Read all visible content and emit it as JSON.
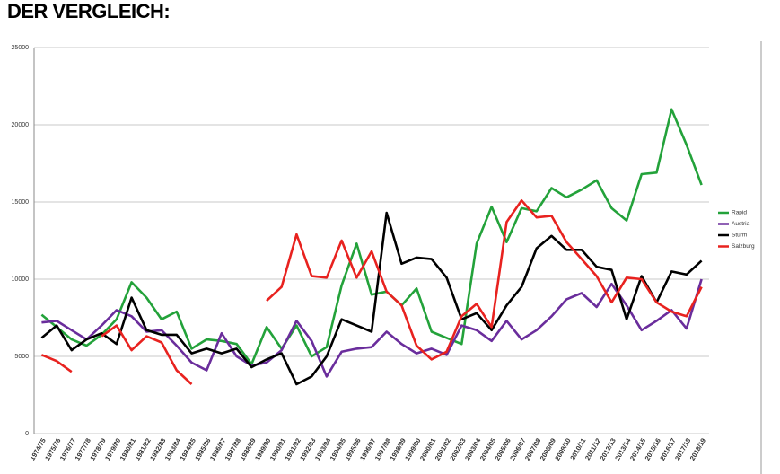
{
  "header": {
    "title": "DER VERGLEICH:"
  },
  "chart_data": {
    "type": "line",
    "categories": [
      "1974/75",
      "1975/76",
      "1976/77",
      "1977/78",
      "1978/79",
      "1979/80",
      "1980/81",
      "1981/82",
      "1982/83",
      "1983/84",
      "1984/85",
      "1985/86",
      "1986/87",
      "1987/88",
      "1988/89",
      "1989/90",
      "1990/91",
      "1991/92",
      "1992/93",
      "1993/94",
      "1994/95",
      "1995/96",
      "1996/97",
      "1997/98",
      "1998/99",
      "1999/00",
      "2000/01",
      "2001/02",
      "2002/03",
      "2003/04",
      "2004/05",
      "2005/06",
      "2006/07",
      "2007/08",
      "2008/09",
      "2009/10",
      "2010/11",
      "2011/12",
      "2012/13",
      "2013/14",
      "2014/15",
      "2015/16",
      "2016/17",
      "2017/18",
      "2018/19"
    ],
    "series": [
      {
        "name": "Rapid",
        "color": "#23a23a",
        "values": [
          7700,
          6900,
          6100,
          5700,
          6400,
          7400,
          9800,
          8800,
          7400,
          7900,
          5500,
          6100,
          6000,
          5800,
          4500,
          6900,
          5500,
          7000,
          5000,
          5600,
          9600,
          12300,
          9000,
          9200,
          8300,
          9400,
          6600,
          6200,
          5800,
          12300,
          14700,
          12400,
          14600,
          14400,
          15900,
          15300,
          15800,
          16400,
          14600,
          13800,
          16800,
          16900,
          21000,
          18700,
          16100
        ]
      },
      {
        "name": "Austria",
        "color": "#6a2d9c",
        "values": [
          7200,
          7300,
          6700,
          6100,
          7000,
          8000,
          7600,
          6600,
          6700,
          5700,
          4600,
          4100,
          6500,
          5000,
          4400,
          4600,
          5400,
          7300,
          6000,
          3700,
          5300,
          5500,
          5600,
          6600,
          5800,
          5200,
          5500,
          5100,
          7000,
          6700,
          6000,
          7300,
          6100,
          6700,
          7600,
          8700,
          9100,
          8200,
          9700,
          8300,
          6700,
          7300,
          8000,
          6800,
          10000
        ]
      },
      {
        "name": "Sturm",
        "color": "#000000",
        "values": [
          6200,
          7000,
          5400,
          6100,
          6500,
          5800,
          8800,
          6700,
          6400,
          6400,
          5200,
          5500,
          5200,
          5500,
          4300,
          4800,
          5200,
          3200,
          3700,
          5000,
          7400,
          7000,
          6600,
          14300,
          11000,
          11400,
          11300,
          10100,
          7400,
          7800,
          6700,
          8300,
          9500,
          12000,
          12800,
          11900,
          11900,
          10800,
          10600,
          7400,
          10200,
          8500,
          10500,
          10300,
          11200
        ]
      },
      {
        "name": "Salzburg",
        "color": "#e8221f",
        "values": [
          5100,
          4700,
          4000,
          null,
          6300,
          7000,
          5400,
          6300,
          5900,
          4100,
          3200,
          null,
          null,
          null,
          null,
          8600,
          9500,
          12900,
          10200,
          10100,
          12500,
          10100,
          11800,
          9200,
          8300,
          5700,
          4800,
          5300,
          7600,
          8400,
          6900,
          13700,
          15100,
          14000,
          14100,
          12400,
          11300,
          10200,
          8500,
          10100,
          10000,
          8500,
          7900,
          7600,
          9500
        ]
      }
    ],
    "ylim": [
      0,
      25000
    ],
    "yticks": [
      0,
      5000,
      10000,
      15000,
      20000,
      25000
    ],
    "grid": true,
    "legend": "right"
  }
}
